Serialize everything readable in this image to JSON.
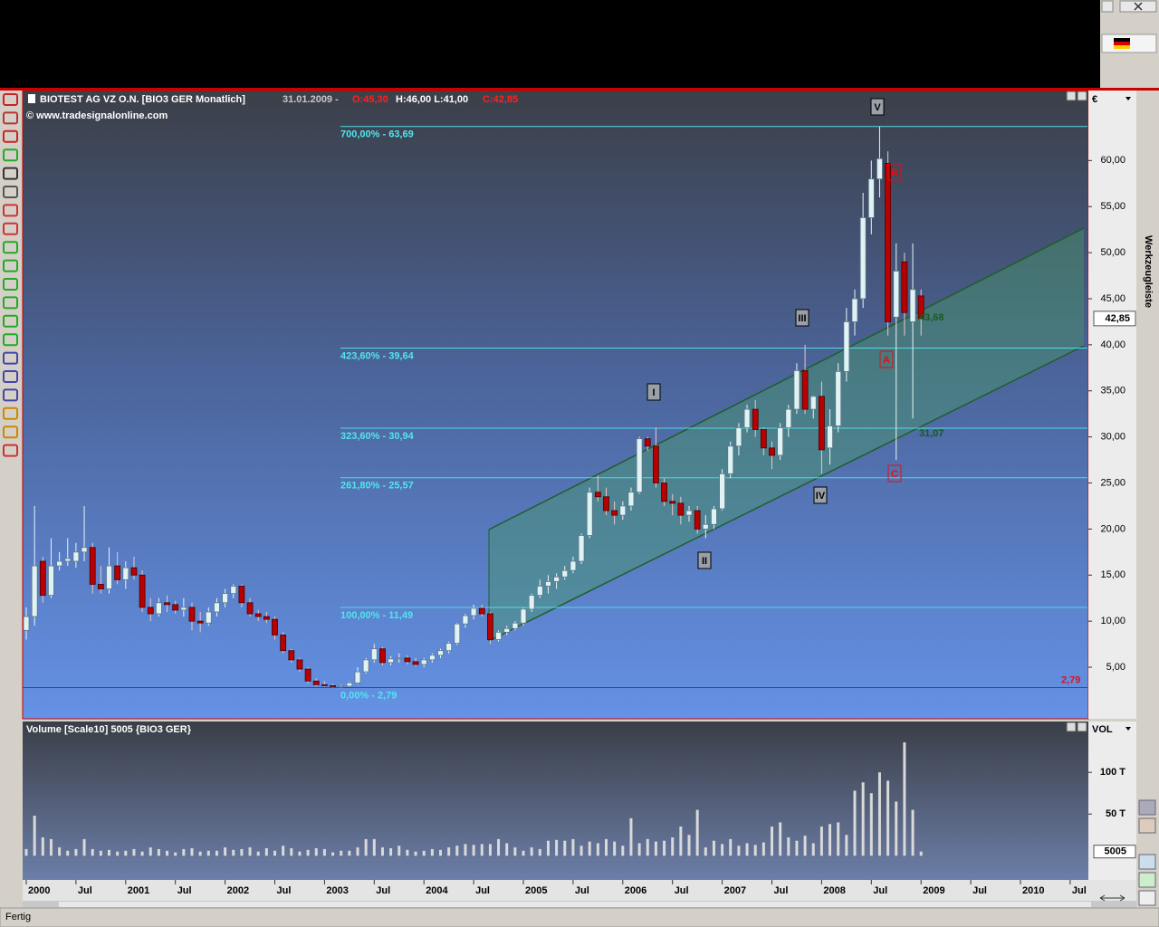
{
  "ui": {
    "status": "Fertig",
    "toolbar_title": "Werkzeugleiste"
  },
  "chart_data": {
    "type": "candlestick",
    "title_name": "BIOTEST AG VZ O.N. [BIO3 GER  Monatlich]",
    "title_date": "31.01.2009 -",
    "title_open": "O:45,30",
    "title_hl": "H:46,00 L:41,00",
    "title_close": "C:42,85",
    "copyright": "© www.tradesignalonline.com",
    "currency": "€",
    "up_color": "#dff3f5",
    "down_color": "#b80000",
    "open": [
      9.0,
      10.5,
      16.5,
      12.8,
      16.0,
      16.5,
      16.5,
      17.5,
      18.0,
      14.0,
      13.5,
      16.0,
      14.5,
      15.8,
      15.0,
      11.5,
      10.8,
      12.0,
      11.8,
      11.2,
      11.5,
      10.0,
      9.8,
      11.0,
      12.0,
      13.0,
      13.8,
      12.0,
      10.8,
      10.5,
      10.2,
      8.5,
      6.8,
      5.8,
      4.8,
      3.5,
      3.1,
      3.0,
      2.9,
      2.95,
      3.3,
      4.5,
      5.8,
      7.0,
      5.5,
      5.9,
      6.0,
      5.6,
      5.3,
      5.8,
      6.3,
      6.8,
      7.6,
      9.7,
      10.6,
      11.4,
      10.8,
      8.0,
      8.8,
      9.2,
      9.8,
      11.3,
      12.8,
      13.8,
      14.3,
      14.8,
      15.5,
      16.5,
      19.3,
      24.0,
      23.5,
      22.0,
      21.5,
      22.5,
      24.0,
      29.8,
      29.0,
      25.0,
      23.0,
      22.8,
      21.5,
      22.0,
      20.0,
      20.5,
      22.2,
      26.0,
      29.0,
      31.0,
      33.0,
      30.8,
      28.8,
      28.0,
      31.0,
      33.0,
      37.2,
      33.0,
      34.4,
      28.8,
      31.2,
      37.1,
      42.5,
      45.0,
      53.8,
      58.0,
      59.7,
      43.0,
      49.0,
      42.5,
      45.3
    ],
    "high": [
      11.5,
      22.5,
      17.0,
      19.0,
      17.5,
      19.0,
      18.5,
      22.5,
      18.5,
      16.0,
      18.0,
      17.5,
      16.5,
      17.0,
      15.5,
      12.5,
      12.5,
      12.8,
      12.2,
      12.5,
      12.0,
      11.0,
      11.5,
      12.5,
      13.5,
      14.0,
      14.0,
      12.5,
      11.2,
      11.0,
      10.5,
      8.8,
      7.0,
      6.0,
      5.0,
      3.8,
      3.5,
      3.2,
      3.1,
      3.4,
      5.0,
      6.0,
      7.5,
      7.2,
      6.2,
      6.5,
      6.3,
      6.0,
      6.0,
      6.5,
      7.0,
      7.8,
      9.8,
      10.8,
      11.8,
      11.8,
      11.0,
      9.0,
      9.5,
      10.0,
      11.5,
      13.0,
      14.5,
      15.0,
      15.2,
      16.0,
      17.0,
      19.5,
      24.5,
      25.8,
      24.5,
      23.0,
      23.0,
      24.5,
      30.0,
      30.0,
      31.0,
      25.5,
      23.8,
      23.5,
      22.5,
      22.5,
      21.5,
      22.5,
      26.5,
      29.5,
      31.5,
      33.5,
      34.0,
      31.0,
      29.5,
      31.5,
      33.5,
      38.0,
      40.0,
      34.5,
      36.0,
      33.0,
      38.0,
      44.0,
      46.0,
      56.5,
      60.0,
      63.69,
      61.0,
      51.0,
      50.0,
      51.0,
      46.0
    ],
    "low": [
      8.0,
      9.5,
      12.0,
      12.5,
      15.5,
      16.0,
      15.8,
      16.5,
      13.0,
      13.0,
      13.0,
      14.0,
      13.5,
      14.5,
      11.0,
      10.0,
      10.5,
      11.0,
      10.8,
      10.5,
      9.0,
      8.8,
      9.5,
      10.5,
      11.5,
      12.5,
      11.5,
      10.5,
      10.0,
      9.8,
      8.0,
      6.5,
      5.5,
      4.5,
      3.2,
      2.9,
      2.9,
      2.8,
      2.79,
      2.85,
      3.2,
      4.3,
      5.5,
      5.2,
      5.2,
      5.5,
      5.3,
      5.1,
      5.0,
      5.5,
      6.0,
      6.5,
      7.4,
      9.3,
      10.2,
      10.5,
      7.5,
      7.8,
      8.5,
      9.0,
      9.5,
      11.0,
      12.5,
      13.0,
      13.5,
      14.5,
      15.2,
      16.2,
      19.0,
      23.0,
      21.5,
      20.5,
      21.0,
      22.0,
      23.8,
      28.5,
      24.5,
      22.5,
      21.5,
      20.5,
      20.8,
      19.5,
      19.0,
      20.0,
      22.0,
      25.5,
      28.0,
      30.5,
      30.0,
      28.0,
      26.5,
      27.5,
      30.0,
      32.5,
      32.5,
      32.0,
      26.0,
      27.0,
      30.5,
      36.0,
      41.0,
      44.0,
      52.0,
      56.0,
      41.0,
      27.5,
      41.0,
      32.0,
      41.0
    ],
    "close": [
      10.5,
      16.0,
      12.8,
      16.0,
      16.5,
      16.8,
      17.5,
      18.0,
      14.0,
      13.5,
      16.0,
      14.5,
      15.8,
      15.0,
      11.5,
      10.8,
      12.0,
      11.8,
      11.2,
      11.5,
      10.0,
      9.8,
      11.0,
      12.0,
      13.0,
      13.8,
      12.0,
      10.8,
      10.5,
      10.2,
      8.5,
      6.8,
      5.8,
      4.8,
      3.5,
      3.1,
      3.0,
      2.9,
      2.95,
      3.3,
      4.5,
      5.8,
      7.0,
      5.5,
      5.9,
      6.0,
      5.6,
      5.3,
      5.8,
      6.3,
      6.8,
      7.6,
      9.7,
      10.6,
      11.4,
      10.8,
      8.0,
      8.8,
      9.2,
      9.8,
      11.3,
      12.8,
      13.8,
      14.3,
      14.8,
      15.5,
      16.5,
      19.3,
      24.0,
      23.5,
      22.0,
      21.5,
      22.5,
      24.0,
      29.8,
      29.0,
      25.0,
      23.0,
      22.8,
      21.5,
      22.0,
      20.0,
      20.5,
      22.2,
      26.0,
      29.0,
      31.0,
      33.0,
      30.8,
      28.8,
      28.0,
      31.0,
      33.0,
      37.2,
      33.0,
      34.4,
      28.6,
      31.2,
      37.1,
      42.5,
      45.0,
      53.8,
      58.0,
      60.2,
      42.5,
      48.0,
      43.5,
      46.0,
      42.85
    ],
    "ylim": [
      -0.5,
      67.6
    ],
    "yticks": [
      {
        "value": 5,
        "label": "5,00"
      },
      {
        "value": 10,
        "label": "10,00"
      },
      {
        "value": 15,
        "label": "15,00"
      },
      {
        "value": 20,
        "label": "20,00"
      },
      {
        "value": 25,
        "label": "25,00"
      },
      {
        "value": 30,
        "label": "30,00"
      },
      {
        "value": 35,
        "label": "35,00"
      },
      {
        "value": 40,
        "label": "40,00"
      },
      {
        "value": 45,
        "label": "45,00"
      },
      {
        "value": 50,
        "label": "50,00"
      },
      {
        "value": 55,
        "label": "55,00"
      },
      {
        "value": 60,
        "label": "60,00"
      }
    ],
    "current_price": {
      "value": 42.85,
      "label": "42,85"
    },
    "fib_levels": [
      {
        "value": 63.69,
        "label": "700,00% - 63,69"
      },
      {
        "value": 39.64,
        "label": "423,60% - 39,64"
      },
      {
        "value": 30.94,
        "label": "323,60% - 30,94"
      },
      {
        "value": 25.57,
        "label": "261,80% - 25,57"
      },
      {
        "value": 11.49,
        "label": "100,00% - 11,49"
      },
      {
        "value": 2.79,
        "label": "0,00% - 2,79"
      }
    ],
    "low_line": {
      "value": 2.79,
      "label": "2,79"
    },
    "wave_labels": [
      "I",
      "II",
      "III",
      "IV",
      "V",
      "A",
      "B",
      "C"
    ],
    "annotations": [
      "43,68",
      "31,07"
    ],
    "x_labels": [
      "2000",
      "Jul",
      "2001",
      "Jul",
      "2002",
      "Jul",
      "2003",
      "Jul",
      "2004",
      "Jul",
      "2005",
      "Jul",
      "2006",
      "Jul",
      "2007",
      "Jul",
      "2008",
      "Jul",
      "2009",
      "Jul",
      "2010",
      "Jul"
    ],
    "volume": {
      "title": "Volume [Scale10] 5005 {BIO3 GER}",
      "axis_label": "VOL",
      "color": "#d9d9d9",
      "values": [
        8000,
        48000,
        22000,
        20000,
        10000,
        6000,
        8000,
        20000,
        8000,
        6000,
        7000,
        5000,
        6000,
        8000,
        5000,
        10000,
        8000,
        6000,
        4000,
        8000,
        9000,
        5000,
        6000,
        6000,
        10000,
        7000,
        8000,
        10000,
        5000,
        9000,
        6000,
        12000,
        9000,
        5000,
        7000,
        9000,
        8000,
        4000,
        6000,
        6000,
        10000,
        20000,
        20000,
        10000,
        9000,
        12000,
        7000,
        5000,
        6000,
        8000,
        7000,
        10000,
        12000,
        14000,
        13000,
        14000,
        14000,
        20000,
        15000,
        10000,
        6000,
        10000,
        8000,
        18000,
        19000,
        18000,
        20000,
        12000,
        17000,
        15000,
        20000,
        17000,
        12000,
        45000,
        15000,
        20000,
        17000,
        18000,
        22000,
        35000,
        25000,
        55000,
        10000,
        18000,
        14000,
        20000,
        12000,
        15000,
        13000,
        16000,
        35000,
        40000,
        22000,
        18000,
        24000,
        15000,
        35000,
        38000,
        40000,
        25000,
        78000,
        88000,
        75000,
        100000,
        90000,
        65000,
        136000,
        55000,
        5005
      ],
      "ylim": [
        -29000,
        161000
      ],
      "yticks": [
        {
          "value": 50000,
          "label": "50 T"
        },
        {
          "value": 100000,
          "label": "100 T"
        }
      ],
      "last": {
        "value": 5005,
        "label": "5005"
      }
    }
  }
}
